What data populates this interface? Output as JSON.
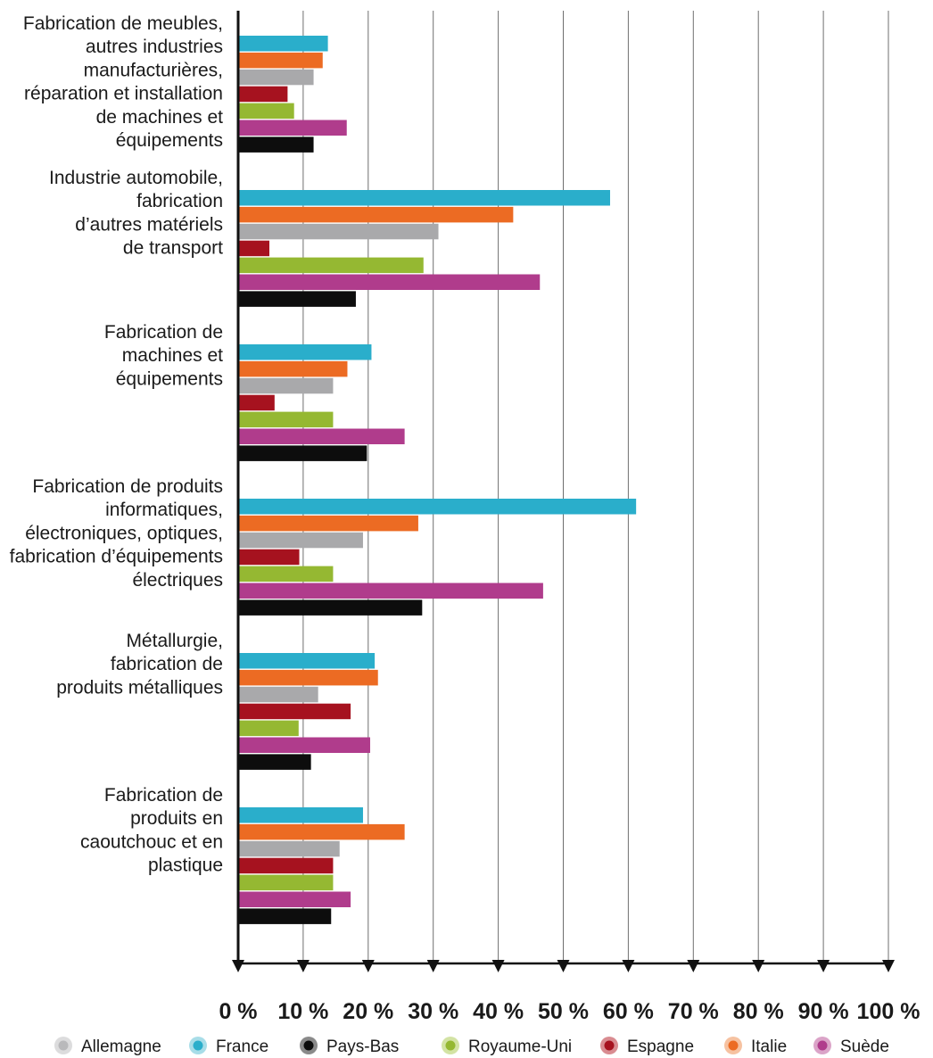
{
  "chart_data": {
    "type": "bar",
    "orientation": "horizontal",
    "title": "",
    "xlabel": "",
    "ylabel": "",
    "xlim": [
      0,
      100
    ],
    "grid": "vertical",
    "legend_position": "bottom",
    "x_ticks": [
      "0 %",
      "10 %",
      "20 %",
      "30 %",
      "40 %",
      "50 %",
      "60 %",
      "70 %",
      "80 %",
      "90 %",
      "100 %"
    ],
    "categories": [
      [
        "Fabrication de meubles,",
        "autres industries",
        "manufacturières,",
        "réparation et installation",
        "de machines et",
        "équipements"
      ],
      [
        "Industrie automobile,",
        "fabrication",
        "d’autres matériels",
        "de transport"
      ],
      [
        "Fabrication de",
        "machines et",
        "équipements"
      ],
      [
        "Fabrication de produits",
        "informatiques,",
        "électroniques, optiques,",
        "fabrication d’équipements",
        "électriques"
      ],
      [
        "Métallurgie,",
        "fabrication de",
        "produits métalliques"
      ],
      [
        "Fabrication de",
        "produits en",
        "caoutchouc et en",
        "plastique"
      ]
    ],
    "series": [
      {
        "name": "France",
        "color": "#2aaecb",
        "values": [
          13.8,
          57.2,
          20.5,
          61.2,
          21.0,
          19.2
        ]
      },
      {
        "name": "Italie",
        "color": "#ec6b23",
        "values": [
          13.0,
          42.3,
          16.8,
          27.7,
          21.5,
          25.6
        ]
      },
      {
        "name": "Allemagne",
        "color": "#a9a9ab",
        "values": [
          11.6,
          30.8,
          14.6,
          19.2,
          12.3,
          15.6
        ]
      },
      {
        "name": "Espagne",
        "color": "#a6121f",
        "values": [
          7.6,
          4.8,
          5.6,
          9.4,
          17.3,
          14.6
        ]
      },
      {
        "name": "Royaume-Uni",
        "color": "#95b832",
        "values": [
          8.6,
          28.5,
          14.6,
          14.6,
          9.3,
          14.6
        ]
      },
      {
        "name": "Suède",
        "color": "#b03c8c",
        "values": [
          16.7,
          46.4,
          25.6,
          46.9,
          20.3,
          17.3
        ]
      },
      {
        "name": "Pays-Bas",
        "color": "#0d0d0d",
        "values": [
          11.6,
          18.1,
          19.8,
          28.3,
          11.2,
          14.3
        ]
      }
    ]
  },
  "legend": [
    {
      "label": "Allemagne",
      "color": "#b9b9bb",
      "ring": "#dcdcdd"
    },
    {
      "label": "France",
      "color": "#2aaecb",
      "ring": "#a8dde8"
    },
    {
      "label": "Pays-Bas",
      "color": "#0d0d0d",
      "ring": "#8a8a8a"
    },
    {
      "label": "Royaume-Uni",
      "color": "#95b832",
      "ring": "#d3e3a4"
    },
    {
      "label": "Espagne",
      "color": "#a6121f",
      "ring": "#d98c91"
    },
    {
      "label": "Italie",
      "color": "#ec6b23",
      "ring": "#f6c2a1"
    },
    {
      "label": "Suède",
      "color": "#b03c8c",
      "ring": "#dba4c8"
    }
  ]
}
